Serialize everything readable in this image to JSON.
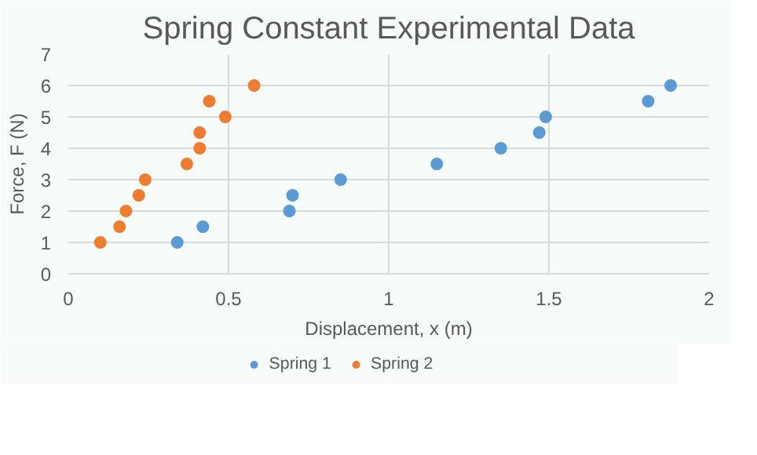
{
  "chart_data": {
    "type": "scatter",
    "title": "Spring Constant Experimental Data",
    "xlabel": "Displacement, x (m)",
    "ylabel": "Force, F (N)",
    "xlim": [
      0,
      2
    ],
    "xticks": [
      0,
      0.5,
      1,
      1.5,
      2
    ],
    "ylim": [
      0,
      7
    ],
    "yticks": [
      0,
      1,
      2,
      3,
      4,
      5,
      6,
      7
    ],
    "grid": true,
    "legend": "bottom",
    "marker": "circle",
    "series": [
      {
        "name": "Spring 1",
        "color": "#5b9bd5",
        "x": [
          0.34,
          0.42,
          0.69,
          0.7,
          0.85,
          1.15,
          1.35,
          1.47,
          1.49,
          1.81,
          1.88
        ],
        "values": [
          1,
          1.5,
          2,
          2.5,
          3,
          3.5,
          4,
          4.5,
          5,
          5.5,
          6
        ]
      },
      {
        "name": "Spring 2",
        "color": "#ed7d31",
        "x": [
          0.1,
          0.16,
          0.18,
          0.22,
          0.24,
          0.37,
          0.41,
          0.41,
          0.49,
          0.44,
          0.58
        ],
        "values": [
          1,
          1.5,
          2,
          2.5,
          3,
          3.5,
          4,
          4.5,
          5,
          5.5,
          6
        ]
      }
    ]
  }
}
